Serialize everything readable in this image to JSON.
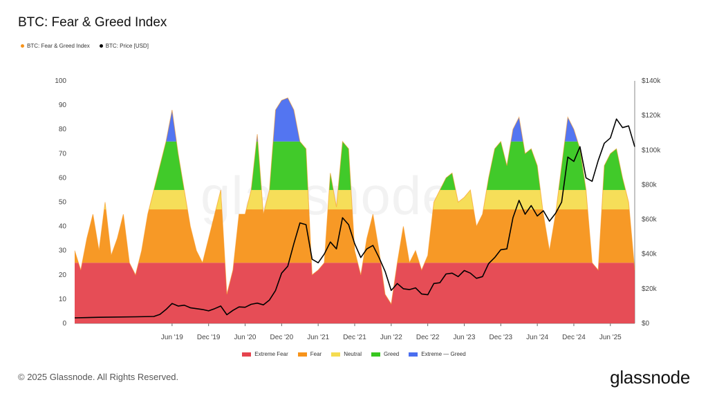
{
  "title": "BTC: Fear & Greed Index",
  "top_legend": [
    {
      "label": "BTC: Fear & Greed Index",
      "color": "#f7931a"
    },
    {
      "label": "BTC: Price [USD]",
      "color": "#000000"
    }
  ],
  "bottom_legend": [
    {
      "label": "Extreme Fear",
      "color": "#e5434d"
    },
    {
      "label": "Fear",
      "color": "#f7931a"
    },
    {
      "label": "Neutral",
      "color": "#f5dc50"
    },
    {
      "label": "Greed",
      "color": "#37c71f"
    },
    {
      "label": "Extreme — Greed",
      "color": "#4a6ef0"
    }
  ],
  "footer": "© 2025 Glassnode. All Rights Reserved.",
  "brand": "glassnode",
  "watermark": "glassnode",
  "chart_data": {
    "type": "line",
    "title": "BTC: Fear & Greed Index",
    "x_ticks": [
      "Jun '19",
      "Dec '19",
      "Jun '20",
      "Dec '20",
      "Jun '21",
      "Dec '21",
      "Jun '22",
      "Dec '22",
      "Jun '23",
      "Dec '23",
      "Jun '24",
      "Dec '24",
      "Jun '25"
    ],
    "x_range": [
      "2018-02",
      "2025-10"
    ],
    "y_left": {
      "ticks": [
        "0",
        "10",
        "20",
        "30",
        "40",
        "50",
        "60",
        "70",
        "80",
        "90",
        "100"
      ],
      "range": [
        0,
        100
      ]
    },
    "y_right": {
      "ticks": [
        "$0",
        "$20k",
        "$40k",
        "$60k",
        "$80k",
        "$100k",
        "$120k",
        "$140k"
      ],
      "range": [
        0,
        140000
      ]
    },
    "zones": [
      {
        "name": "Extreme Fear",
        "from": 0,
        "to": 25,
        "color": "#e5434d"
      },
      {
        "name": "Fear",
        "from": 25,
        "to": 47,
        "color": "#f7931a"
      },
      {
        "name": "Neutral",
        "from": 47,
        "to": 55,
        "color": "#f5dc50"
      },
      {
        "name": "Greed",
        "from": 55,
        "to": 75,
        "color": "#37c71f"
      },
      {
        "name": "Extreme — Greed",
        "from": 75,
        "to": 100,
        "color": "#4a6ef0"
      }
    ],
    "series": [
      {
        "name": "BTC: Fear & Greed Index",
        "axis": "left",
        "points": [
          [
            "2018-02",
            30
          ],
          [
            "2018-03",
            22
          ],
          [
            "2018-04",
            35
          ],
          [
            "2018-05",
            45
          ],
          [
            "2018-06",
            30
          ],
          [
            "2018-07",
            50
          ],
          [
            "2018-08",
            28
          ],
          [
            "2018-09",
            35
          ],
          [
            "2018-10",
            45
          ],
          [
            "2018-11",
            25
          ],
          [
            "2018-12",
            20
          ],
          [
            "2019-01",
            30
          ],
          [
            "2019-02",
            45
          ],
          [
            "2019-03",
            55
          ],
          [
            "2019-04",
            65
          ],
          [
            "2019-05",
            75
          ],
          [
            "2019-06",
            88
          ],
          [
            "2019-07",
            70
          ],
          [
            "2019-08",
            55
          ],
          [
            "2019-09",
            40
          ],
          [
            "2019-10",
            30
          ],
          [
            "2019-11",
            25
          ],
          [
            "2019-12",
            35
          ],
          [
            "2020-01",
            45
          ],
          [
            "2020-02",
            55
          ],
          [
            "2020-03",
            12
          ],
          [
            "2020-04",
            22
          ],
          [
            "2020-05",
            45
          ],
          [
            "2020-06",
            45
          ],
          [
            "2020-07",
            55
          ],
          [
            "2020-08",
            78
          ],
          [
            "2020-09",
            45
          ],
          [
            "2020-10",
            55
          ],
          [
            "2020-11",
            88
          ],
          [
            "2020-12",
            92
          ],
          [
            "2021-01",
            93
          ],
          [
            "2021-02",
            88
          ],
          [
            "2021-03",
            75
          ],
          [
            "2021-04",
            72
          ],
          [
            "2021-05",
            20
          ],
          [
            "2021-06",
            22
          ],
          [
            "2021-07",
            25
          ],
          [
            "2021-08",
            62
          ],
          [
            "2021-09",
            48
          ],
          [
            "2021-10",
            75
          ],
          [
            "2021-11",
            72
          ],
          [
            "2021-12",
            30
          ],
          [
            "2022-01",
            20
          ],
          [
            "2022-02",
            35
          ],
          [
            "2022-03",
            45
          ],
          [
            "2022-04",
            30
          ],
          [
            "2022-05",
            12
          ],
          [
            "2022-06",
            8
          ],
          [
            "2022-07",
            25
          ],
          [
            "2022-08",
            40
          ],
          [
            "2022-09",
            25
          ],
          [
            "2022-10",
            30
          ],
          [
            "2022-11",
            22
          ],
          [
            "2022-12",
            28
          ],
          [
            "2023-01",
            50
          ],
          [
            "2023-02",
            55
          ],
          [
            "2023-03",
            60
          ],
          [
            "2023-04",
            62
          ],
          [
            "2023-05",
            50
          ],
          [
            "2023-06",
            52
          ],
          [
            "2023-07",
            55
          ],
          [
            "2023-08",
            40
          ],
          [
            "2023-09",
            45
          ],
          [
            "2023-10",
            60
          ],
          [
            "2023-11",
            72
          ],
          [
            "2023-12",
            75
          ],
          [
            "2024-01",
            65
          ],
          [
            "2024-02",
            80
          ],
          [
            "2024-03",
            85
          ],
          [
            "2024-04",
            70
          ],
          [
            "2024-05",
            72
          ],
          [
            "2024-06",
            65
          ],
          [
            "2024-07",
            45
          ],
          [
            "2024-08",
            30
          ],
          [
            "2024-09",
            45
          ],
          [
            "2024-10",
            65
          ],
          [
            "2024-11",
            85
          ],
          [
            "2024-12",
            80
          ],
          [
            "2025-01",
            72
          ],
          [
            "2025-02",
            55
          ],
          [
            "2025-03",
            25
          ],
          [
            "2025-04",
            22
          ],
          [
            "2025-05",
            65
          ],
          [
            "2025-06",
            70
          ],
          [
            "2025-07",
            72
          ],
          [
            "2025-08",
            60
          ],
          [
            "2025-09",
            50
          ],
          [
            "2025-10",
            22
          ]
        ]
      },
      {
        "name": "BTC: Price [USD]",
        "axis": "right",
        "points": [
          [
            "2018-02",
            3200
          ],
          [
            "2018-06",
            3500
          ],
          [
            "2018-12",
            3800
          ],
          [
            "2019-03",
            4000
          ],
          [
            "2019-04",
            5200
          ],
          [
            "2019-05",
            8000
          ],
          [
            "2019-06",
            11500
          ],
          [
            "2019-07",
            10000
          ],
          [
            "2019-08",
            10500
          ],
          [
            "2019-09",
            9000
          ],
          [
            "2019-10",
            8500
          ],
          [
            "2019-11",
            8000
          ],
          [
            "2019-12",
            7200
          ],
          [
            "2020-01",
            8500
          ],
          [
            "2020-02",
            10000
          ],
          [
            "2020-03",
            5000
          ],
          [
            "2020-04",
            7500
          ],
          [
            "2020-05",
            9500
          ],
          [
            "2020-06",
            9300
          ],
          [
            "2020-07",
            11000
          ],
          [
            "2020-08",
            11700
          ],
          [
            "2020-09",
            10700
          ],
          [
            "2020-10",
            13500
          ],
          [
            "2020-11",
            19000
          ],
          [
            "2020-12",
            29000
          ],
          [
            "2021-01",
            33000
          ],
          [
            "2021-02",
            46000
          ],
          [
            "2021-03",
            58000
          ],
          [
            "2021-04",
            57000
          ],
          [
            "2021-05",
            37000
          ],
          [
            "2021-06",
            35000
          ],
          [
            "2021-07",
            40000
          ],
          [
            "2021-08",
            47000
          ],
          [
            "2021-09",
            43000
          ],
          [
            "2021-10",
            61000
          ],
          [
            "2021-11",
            57000
          ],
          [
            "2021-12",
            46000
          ],
          [
            "2022-01",
            38000
          ],
          [
            "2022-02",
            43000
          ],
          [
            "2022-03",
            45000
          ],
          [
            "2022-04",
            38000
          ],
          [
            "2022-05",
            30000
          ],
          [
            "2022-06",
            19000
          ],
          [
            "2022-07",
            23000
          ],
          [
            "2022-08",
            20000
          ],
          [
            "2022-09",
            19500
          ],
          [
            "2022-10",
            20500
          ],
          [
            "2022-11",
            17000
          ],
          [
            "2022-12",
            16500
          ],
          [
            "2023-01",
            23000
          ],
          [
            "2023-02",
            23500
          ],
          [
            "2023-03",
            28500
          ],
          [
            "2023-04",
            29000
          ],
          [
            "2023-05",
            27000
          ],
          [
            "2023-06",
            30500
          ],
          [
            "2023-07",
            29000
          ],
          [
            "2023-08",
            26000
          ],
          [
            "2023-09",
            27000
          ],
          [
            "2023-10",
            34500
          ],
          [
            "2023-11",
            38000
          ],
          [
            "2023-12",
            42500
          ],
          [
            "2024-01",
            43000
          ],
          [
            "2024-02",
            61000
          ],
          [
            "2024-03",
            71000
          ],
          [
            "2024-04",
            63000
          ],
          [
            "2024-05",
            68000
          ],
          [
            "2024-06",
            62000
          ],
          [
            "2024-07",
            65000
          ],
          [
            "2024-08",
            59000
          ],
          [
            "2024-09",
            63500
          ],
          [
            "2024-10",
            70000
          ],
          [
            "2024-11",
            96000
          ],
          [
            "2024-12",
            93500
          ],
          [
            "2025-01",
            102000
          ],
          [
            "2025-02",
            84000
          ],
          [
            "2025-03",
            82000
          ],
          [
            "2025-04",
            94000
          ],
          [
            "2025-05",
            104000
          ],
          [
            "2025-06",
            107000
          ],
          [
            "2025-07",
            118000
          ],
          [
            "2025-08",
            113000
          ],
          [
            "2025-09",
            114000
          ],
          [
            "2025-10",
            102000
          ]
        ]
      }
    ]
  }
}
